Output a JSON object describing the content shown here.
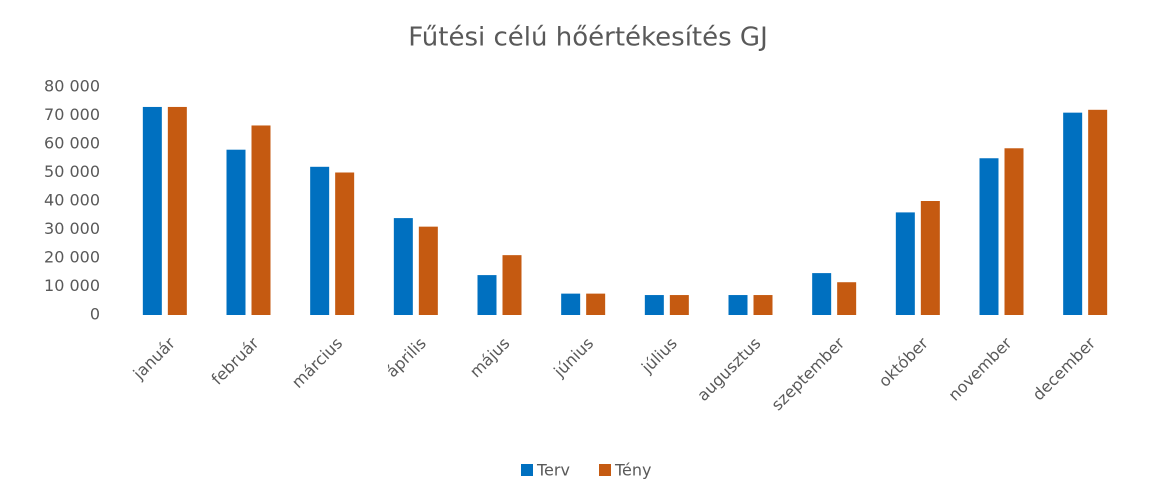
{
  "chart_data": {
    "type": "bar",
    "title": "Fűtési célú hőértékesítés GJ",
    "categories": [
      "január",
      "február",
      "március",
      "április",
      "május",
      "június",
      "július",
      "augusztus",
      "szeptember",
      "október",
      "november",
      "december"
    ],
    "series": [
      {
        "name": "Terv",
        "color": "#0070c0",
        "values": [
          73000,
          58000,
          52000,
          34000,
          14000,
          7500,
          7000,
          7000,
          14700,
          36000,
          55000,
          71000
        ]
      },
      {
        "name": "Tény",
        "color": "#c55a11",
        "values": [
          73000,
          66500,
          50000,
          31000,
          21000,
          7500,
          7000,
          7000,
          11500,
          40000,
          58500,
          72000
        ]
      }
    ],
    "ylim": [
      0,
      80000
    ],
    "yticks": [
      0,
      {
        "value": 10000,
        "label": "10 000"
      },
      {
        "value": 20000,
        "label": "20 000"
      },
      {
        "value": 30000,
        "label": "30 000"
      },
      {
        "value": 40000,
        "label": "40 000"
      },
      {
        "value": 50000,
        "label": "50 000"
      },
      {
        "value": 60000,
        "label": "60 000"
      },
      {
        "value": 70000,
        "label": "70 000"
      },
      {
        "value": 80000,
        "label": "80 000"
      }
    ],
    "grid": false,
    "legend": "bottom"
  }
}
